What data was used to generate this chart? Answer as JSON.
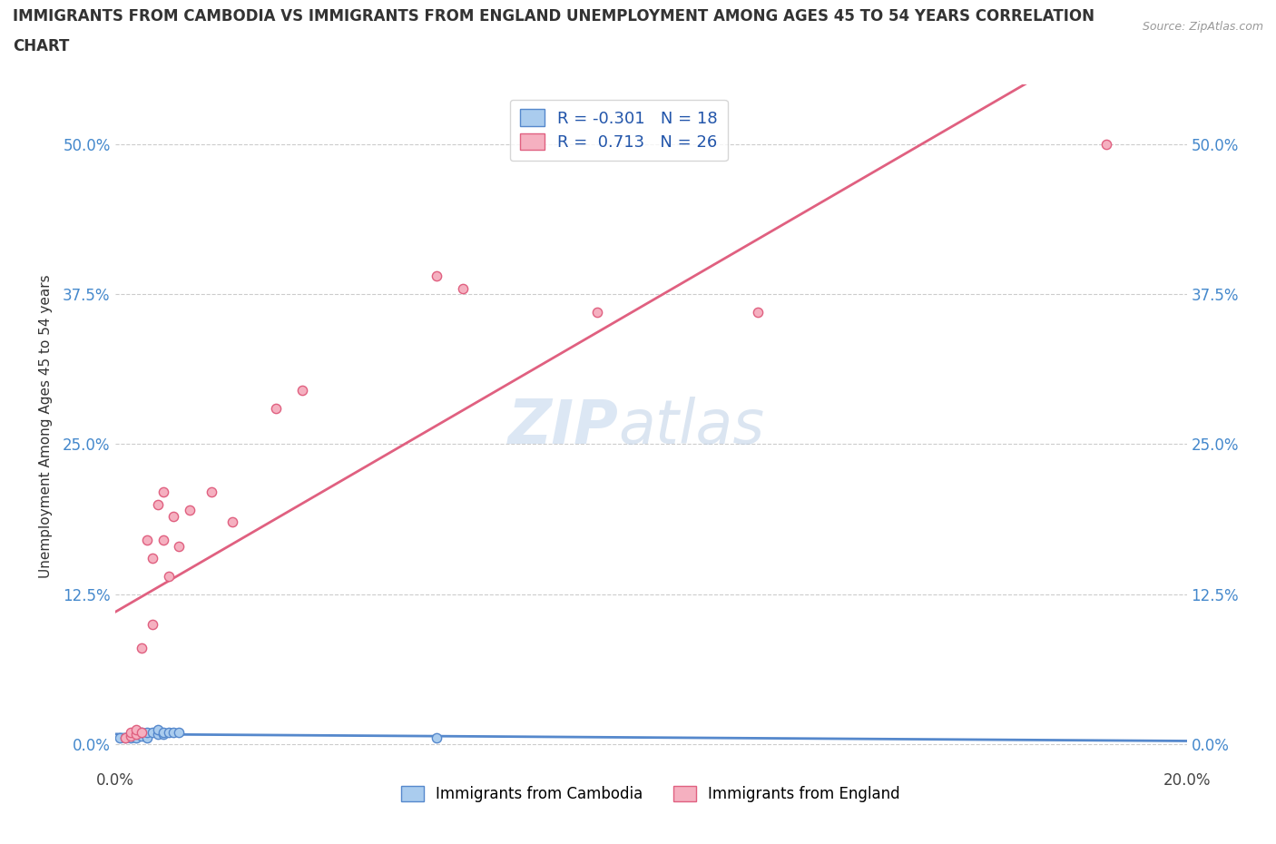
{
  "title_line1": "IMMIGRANTS FROM CAMBODIA VS IMMIGRANTS FROM ENGLAND UNEMPLOYMENT AMONG AGES 45 TO 54 YEARS CORRELATION",
  "title_line2": "CHART",
  "source_text": "Source: ZipAtlas.com",
  "ylabel": "Unemployment Among Ages 45 to 54 years",
  "xlim": [
    0.0,
    0.2
  ],
  "ylim": [
    -0.02,
    0.55
  ],
  "yticks": [
    0.0,
    0.125,
    0.25,
    0.375,
    0.5
  ],
  "ytick_labels": [
    "0.0%",
    "12.5%",
    "25.0%",
    "37.5%",
    "50.0%"
  ],
  "xticks": [
    0.0,
    0.05,
    0.1,
    0.15,
    0.2
  ],
  "xtick_labels": [
    "0.0%",
    "",
    "",
    "",
    "20.0%"
  ],
  "cambodia_x": [
    0.001,
    0.002,
    0.003,
    0.004,
    0.004,
    0.005,
    0.005,
    0.006,
    0.006,
    0.007,
    0.008,
    0.008,
    0.009,
    0.009,
    0.01,
    0.011,
    0.012,
    0.06
  ],
  "cambodia_y": [
    0.005,
    0.005,
    0.005,
    0.005,
    0.01,
    0.007,
    0.01,
    0.005,
    0.01,
    0.01,
    0.008,
    0.012,
    0.008,
    0.01,
    0.01,
    0.01,
    0.01,
    0.005
  ],
  "england_x": [
    0.002,
    0.003,
    0.003,
    0.004,
    0.004,
    0.005,
    0.005,
    0.006,
    0.007,
    0.007,
    0.008,
    0.009,
    0.009,
    0.01,
    0.011,
    0.012,
    0.014,
    0.018,
    0.022,
    0.03,
    0.035,
    0.06,
    0.065,
    0.09,
    0.12,
    0.185
  ],
  "england_y": [
    0.005,
    0.007,
    0.01,
    0.008,
    0.012,
    0.01,
    0.08,
    0.17,
    0.1,
    0.155,
    0.2,
    0.21,
    0.17,
    0.14,
    0.19,
    0.165,
    0.195,
    0.21,
    0.185,
    0.28,
    0.295,
    0.39,
    0.38,
    0.36,
    0.36,
    0.5
  ],
  "cambodia_color": "#aaccee",
  "england_color": "#f5b0c0",
  "cambodia_line_color": "#5588cc",
  "england_line_color": "#e06080",
  "R_cambodia": -0.301,
  "N_cambodia": 18,
  "R_england": 0.713,
  "N_england": 26,
  "legend_label_cambodia": "Immigrants from Cambodia",
  "legend_label_england": "Immigrants from England",
  "watermark_zip": "ZIP",
  "watermark_atlas": "atlas",
  "background_color": "#ffffff",
  "grid_color": "#cccccc"
}
